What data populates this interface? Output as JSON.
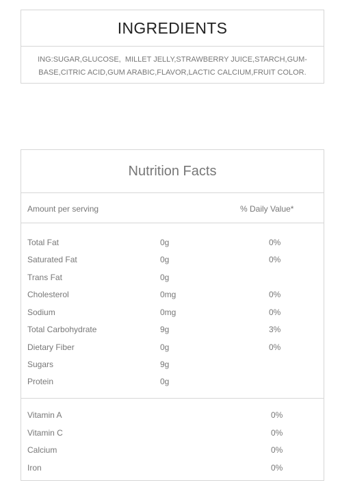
{
  "ingredients": {
    "title": "INGREDIENTS",
    "line1": "ING:SUGAR,GLUCOSE,  MILLET JELLY,STRAWBERRY JUICE,STARCH,GUM-",
    "line2": "BASE,CITRIC ACID,GUM ARABIC,FLAVOR,LACTIC CALCIUM,FRUIT COLOR."
  },
  "nutrition": {
    "title": "Nutrition Facts",
    "amount_header": "Amount per serving",
    "daily_header": "% Daily Value*",
    "nutrients": [
      {
        "name": "Total Fat",
        "amount": "0g",
        "dv": "0%"
      },
      {
        "name": "Saturated Fat",
        "amount": "0g",
        "dv": "0%"
      },
      {
        "name": "Trans Fat",
        "amount": "0g",
        "dv": ""
      },
      {
        "name": "Cholesterol",
        "amount": "0mg",
        "dv": "0%"
      },
      {
        "name": "Sodium",
        "amount": "0mg",
        "dv": "0%"
      },
      {
        "name": "Total Carbohydrate",
        "amount": "9g",
        "dv": "3%"
      },
      {
        "name": "Dietary Fiber",
        "amount": "0g",
        "dv": "0%"
      },
      {
        "name": "Sugars",
        "amount": "9g",
        "dv": ""
      },
      {
        "name": "Protein",
        "amount": "0g",
        "dv": ""
      }
    ],
    "vitamins": [
      {
        "name": "Vitamin A",
        "dv": "0%"
      },
      {
        "name": "Vitamin C",
        "dv": "0%"
      },
      {
        "name": "Calcium",
        "dv": "0%"
      },
      {
        "name": "Iron",
        "dv": "0%"
      }
    ]
  }
}
